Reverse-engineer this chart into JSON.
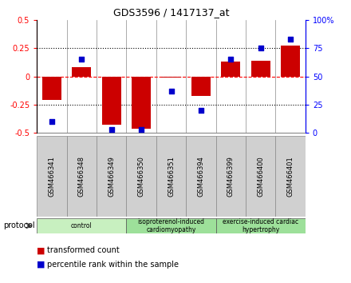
{
  "title": "GDS3596 / 1417137_at",
  "samples": [
    "GSM466341",
    "GSM466348",
    "GSM466349",
    "GSM466350",
    "GSM466351",
    "GSM466394",
    "GSM466399",
    "GSM466400",
    "GSM466401"
  ],
  "transformed_count": [
    -0.21,
    0.08,
    -0.43,
    -0.46,
    -0.01,
    -0.17,
    0.13,
    0.14,
    0.27
  ],
  "percentile_rank": [
    10,
    65,
    3,
    3,
    37,
    20,
    65,
    75,
    83
  ],
  "bar_color": "#CC0000",
  "dot_color": "#0000CC",
  "left_ylim": [
    -0.5,
    0.5
  ],
  "right_ylim": [
    0,
    100
  ],
  "left_yticks": [
    -0.5,
    -0.25,
    0,
    0.25,
    0.5
  ],
  "right_yticks": [
    0,
    25,
    50,
    75,
    100
  ],
  "left_yticklabels": [
    "-0.5",
    "-0.25",
    "0",
    "0.25",
    "0.5"
  ],
  "right_yticklabels": [
    "0",
    "25",
    "50",
    "75",
    "100%"
  ],
  "hlines": [
    -0.25,
    0.25
  ],
  "zero_line": 0,
  "groups": [
    {
      "label": "control",
      "start": 0,
      "end": 3,
      "color": "#c8f0c0"
    },
    {
      "label": "isoproterenol-induced\ncardiomyopathy",
      "start": 3,
      "end": 6,
      "color": "#9de09a"
    },
    {
      "label": "exercise-induced cardiac\nhypertrophy",
      "start": 6,
      "end": 9,
      "color": "#9de09a"
    }
  ],
  "sample_box_color": "#d0d0d0",
  "sample_box_edge": "#888888",
  "protocol_label": "protocol",
  "legend_bar_label": "transformed count",
  "legend_dot_label": "percentile rank within the sample"
}
